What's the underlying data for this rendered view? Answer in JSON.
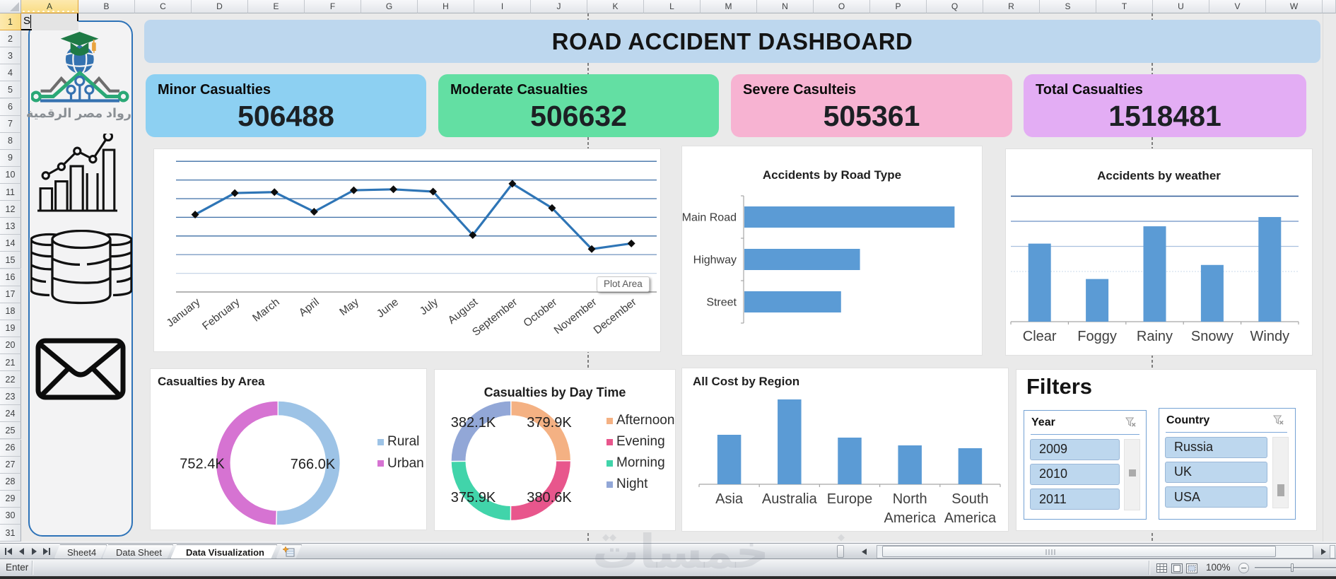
{
  "app": {
    "status_mode": "Enter",
    "zoom_level": "100%",
    "active_cell_text": "S",
    "selected_column": "A",
    "selected_row": "1"
  },
  "spreadsheet": {
    "column_letters": [
      "A",
      "B",
      "C",
      "D",
      "E",
      "F",
      "G",
      "H",
      "I",
      "J",
      "K",
      "L",
      "M",
      "N",
      "O",
      "P",
      "Q",
      "R",
      "S",
      "T",
      "U",
      "V",
      "W"
    ],
    "row_numbers": [
      "1",
      "2",
      "3",
      "4",
      "5",
      "6",
      "7",
      "8",
      "9",
      "10",
      "11",
      "12",
      "13",
      "14",
      "15",
      "16",
      "17",
      "18",
      "19",
      "20",
      "21",
      "22",
      "23",
      "24",
      "25",
      "26",
      "27",
      "28",
      "29",
      "30",
      "31"
    ]
  },
  "sheet_tabs": {
    "tabs": [
      {
        "label": "Sheet4",
        "active": false
      },
      {
        "label": "Data Sheet",
        "active": false
      },
      {
        "label": "Data Visualization",
        "active": true
      }
    ]
  },
  "sidebar": {
    "logo_text": "رواد مصر الرقمية",
    "icons": [
      "graduation-globe-logo",
      "growth-chart-icon",
      "database-icon",
      "envelope-icon"
    ]
  },
  "dashboard": {
    "title": "ROAD ACCIDENT DASHBOARD",
    "banner_color": "#bdd7ee",
    "kpi_cards": [
      {
        "label": "Minor Casualties",
        "value": "506488",
        "color": "#8dd0f2"
      },
      {
        "label": "Moderate Casualties",
        "value": "506632",
        "color": "#63dfa3"
      },
      {
        "label": "Severe Casulteis",
        "value": "505361",
        "color": "#f7b3d2"
      },
      {
        "label": "Total Casualties",
        "value": "1518481",
        "color": "#e3adf4"
      }
    ],
    "plot_area_tooltip": "Plot Area",
    "filters": {
      "title": "Filters",
      "slicers": [
        {
          "title": "Year",
          "items": [
            "2009",
            "2010",
            "2011"
          ]
        },
        {
          "title": "Country",
          "items": [
            "Russia",
            "UK",
            "USA"
          ]
        }
      ]
    }
  },
  "chart_data": [
    {
      "id": "monthly-line",
      "type": "line",
      "title": "",
      "categories": [
        "January",
        "February",
        "March",
        "April",
        "May",
        "June",
        "July",
        "August",
        "September",
        "October",
        "November",
        "December"
      ],
      "values": [
        4.15,
        5.3,
        5.35,
        4.3,
        5.45,
        5.5,
        5.38,
        3.05,
        5.8,
        4.5,
        2.3,
        2.6
      ],
      "ylim": [
        0,
        7
      ],
      "gridline_values": [
        1,
        2,
        3,
        4,
        5,
        6,
        7
      ],
      "gridline_colors": [
        "#c8d6e8",
        "#7d9cc4",
        "#3e6fa6",
        "#3e6fa6",
        "#3e6fa6",
        "#3e6fa6",
        "#3e6fa6"
      ],
      "line_color": "#2e75b6",
      "marker": "black-diamond",
      "axis_color": "#9b9b9b",
      "legend": "none"
    },
    {
      "id": "road-type",
      "type": "bar",
      "title": "Accidents by Road Type",
      "categories": [
        "Main Road",
        "Highway",
        "Street"
      ],
      "values": [
        100,
        55,
        46
      ],
      "xlim": [
        0,
        115
      ],
      "bar_color": "#5b9bd5",
      "axis_color": "#a6a6a6",
      "note": "value axis not labeled; values are relative units"
    },
    {
      "id": "weather",
      "type": "column",
      "title": "Accidents by weather",
      "categories": [
        "Clear",
        "Foggy",
        "Rainy",
        "Snowy",
        "Windy"
      ],
      "values": [
        3.11,
        1.7,
        3.8,
        2.26,
        4.17
      ],
      "ylim": [
        0,
        5.7
      ],
      "gridline_values": [
        2,
        3,
        4,
        5
      ],
      "gridline_colors": [
        "#d5e0ef",
        "#a9c0de",
        "#6a8fc4",
        "#2f5b97"
      ],
      "gridline_dotted": [
        true,
        false,
        false,
        false
      ],
      "bar_color": "#5b9bd5",
      "axis_color": "#a6a6a6",
      "note": "value axis not labeled; values are relative units"
    },
    {
      "id": "area-donut",
      "type": "pie",
      "title": "Casualties by Area",
      "donut": true,
      "slices": [
        {
          "label": "Rural",
          "value": 766.0,
          "display": "766.0K",
          "color": "#9dc3e6"
        },
        {
          "label": "Urban",
          "value": 752.4,
          "display": "752.4K",
          "color": "#d673d2"
        }
      ],
      "legend_position": "right"
    },
    {
      "id": "daytime-donut",
      "type": "pie",
      "title": "Casualties by Day Time",
      "donut": true,
      "slices": [
        {
          "label": "Afternoon",
          "value": 379.9,
          "display": "379.9K",
          "color": "#f4b183"
        },
        {
          "label": "Evening",
          "value": 380.6,
          "display": "380.6K",
          "color": "#e8568c"
        },
        {
          "label": "Morning",
          "value": 375.9,
          "display": "375.9K",
          "color": "#41d4aa"
        },
        {
          "label": "Night",
          "value": 382.1,
          "display": "382.1K",
          "color": "#92a7d7"
        }
      ],
      "legend_position": "right"
    },
    {
      "id": "cost-region",
      "type": "column",
      "title": "All Cost by Region",
      "categories": [
        "Asia",
        "Australia",
        "Europe",
        "North America",
        "South America"
      ],
      "values": [
        70,
        120,
        66,
        55,
        51
      ],
      "ylim": [
        0,
        164
      ],
      "bar_color": "#5b9bd5",
      "axis_color": "#a6a6a6",
      "note": "value axis not labeled; values are relative units"
    }
  ],
  "watermark": {
    "text": "خمسات"
  }
}
